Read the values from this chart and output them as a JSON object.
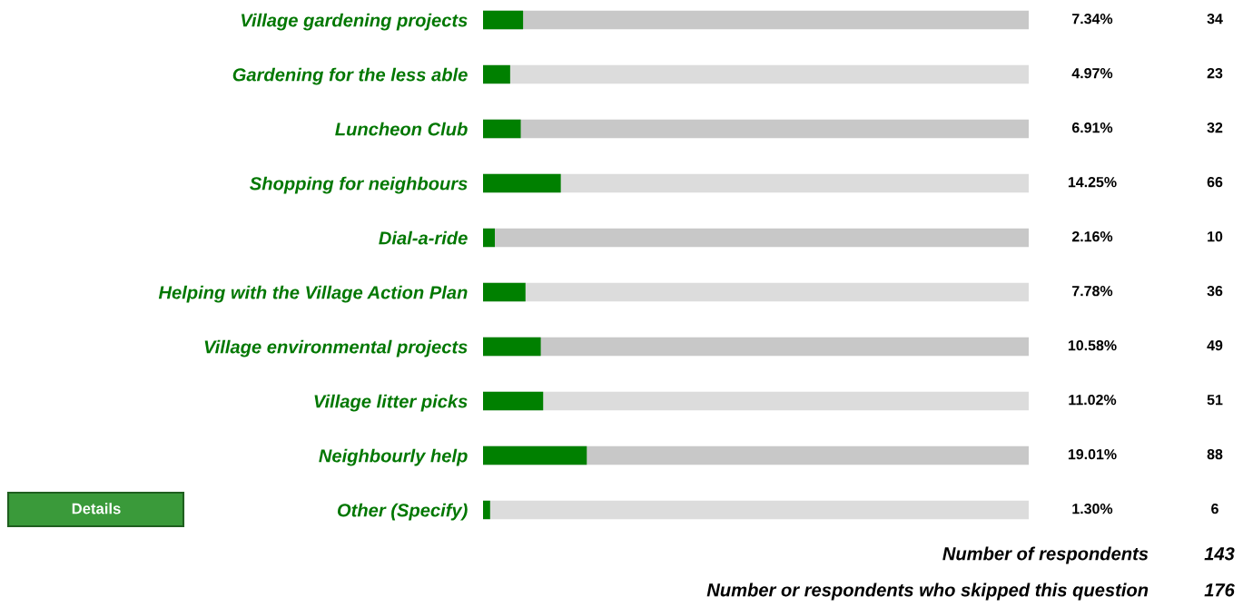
{
  "chart_data": {
    "type": "bar",
    "orientation": "horizontal",
    "categories": [
      "Village gardening projects",
      "Gardening for the less able",
      "Luncheon Club",
      "Shopping for neighbours",
      "Dial-a-ride",
      "Helping with the Village Action Plan",
      "Village environmental projects",
      "Village litter picks",
      "Neighbourly help",
      "Other (Specify)"
    ],
    "values": [
      7.34,
      4.97,
      6.91,
      14.25,
      2.16,
      7.78,
      10.58,
      11.02,
      19.01,
      1.3
    ],
    "value_labels": [
      "7.34%",
      "4.97%",
      "6.91%",
      "14.25%",
      "2.16%",
      "7.78%",
      "10.58%",
      "11.02%",
      "19.01%",
      "1.30%"
    ],
    "color": "#008000",
    "xlim": [
      0,
      100
    ],
    "tick_labels": "y",
    "grid": false,
    "legend": false,
    "annotations": [
      "34",
      "23",
      "32",
      "66",
      "10",
      "36",
      "49",
      "51",
      "88",
      "6",
      "Details",
      "Number of respondents",
      "143",
      "Number or respondents who skipped this question",
      "176"
    ]
  }
}
